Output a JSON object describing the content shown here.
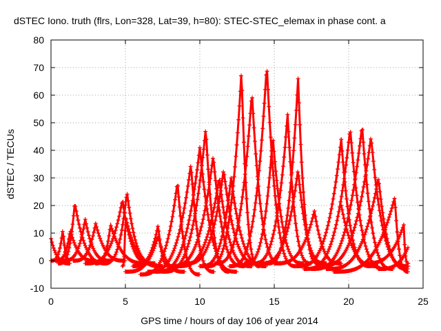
{
  "chart_data": {
    "type": "scatter",
    "title": "dSTEC Iono. truth (flrs, Lon=328, Lat=39, h=80): STEC-STEC_elemax in phase cont. a",
    "xlabel": "GPS time / hours of day 106 of year 2014",
    "ylabel": "dSTEC  / TECUs",
    "xlim": [
      0,
      25
    ],
    "ylim": [
      -10,
      80
    ],
    "xticks": [
      0,
      5,
      10,
      15,
      20,
      25
    ],
    "yticks": [
      -10,
      0,
      10,
      20,
      30,
      40,
      50,
      60,
      70,
      80
    ],
    "grid": true,
    "marker": "+",
    "color": "#ff0000",
    "arcs": [
      {
        "start": 0.0,
        "peak_time": 0.0,
        "peak": 8,
        "end": 1.3,
        "min": -1
      },
      {
        "start": 0.0,
        "peak_time": 0.8,
        "peak": 11.5,
        "end": 1.3,
        "min": 0
      },
      {
        "start": 0.3,
        "peak_time": 1.3,
        "peak": 11,
        "end": 3.0,
        "min": 0
      },
      {
        "start": 0.5,
        "peak_time": 1.6,
        "peak": 21,
        "end": 3.8,
        "min": -1
      },
      {
        "start": 0.8,
        "peak_time": 2.3,
        "peak": 15,
        "end": 4.0,
        "min": 0
      },
      {
        "start": 1.5,
        "peak_time": 3.0,
        "peak": 13.5,
        "end": 5.0,
        "min": 0
      },
      {
        "start": 3.0,
        "peak_time": 4.0,
        "peak": 13,
        "end": 6.5,
        "min": -1
      },
      {
        "start": 2.3,
        "peak_time": 4.8,
        "peak": 22,
        "end": 6.8,
        "min": -1
      },
      {
        "start": 3.5,
        "peak_time": 5.1,
        "peak": 25,
        "end": 7.0,
        "min": -1
      },
      {
        "start": 4.8,
        "peak_time": 5.0,
        "peak": 16,
        "end": 7.5,
        "min": -2
      },
      {
        "start": 5.5,
        "peak_time": 7.2,
        "peak": 13,
        "end": 8.0,
        "min": -2
      },
      {
        "start": 5.0,
        "peak_time": 7.2,
        "peak": 9,
        "end": 9.0,
        "min": -4
      },
      {
        "start": 6.0,
        "peak_time": 8.5,
        "peak": 28.5,
        "end": 10.0,
        "min": -5
      },
      {
        "start": 6.5,
        "peak_time": 9.4,
        "peak": 35,
        "end": 11.0,
        "min": -4
      },
      {
        "start": 7.0,
        "peak_time": 10.0,
        "peak": 41,
        "end": 12.5,
        "min": -4
      },
      {
        "start": 7.5,
        "peak_time": 10.4,
        "peak": 48,
        "end": 12.0,
        "min": -4
      },
      {
        "start": 8.0,
        "peak_time": 10.9,
        "peak": 38,
        "end": 13.0,
        "min": -2
      },
      {
        "start": 8.5,
        "peak_time": 11.3,
        "peak": 30,
        "end": 13.5,
        "min": -2
      },
      {
        "start": 9.0,
        "peak_time": 11.6,
        "peak": 33,
        "end": 14.0,
        "min": -1
      },
      {
        "start": 10.0,
        "peak_time": 12.1,
        "peak": 30,
        "end": 14.5,
        "min": -2
      },
      {
        "start": 10.5,
        "peak_time": 12.8,
        "peak": 69,
        "end": 14.0,
        "min": -2
      },
      {
        "start": 11.0,
        "peak_time": 13.5,
        "peak": 61,
        "end": 15.5,
        "min": -1
      },
      {
        "start": 12.0,
        "peak_time": 14.5,
        "peak": 71,
        "end": 16.5,
        "min": -2
      },
      {
        "start": 13.0,
        "peak_time": 14.9,
        "peak": 45,
        "end": 17.0,
        "min": -1
      },
      {
        "start": 13.5,
        "peak_time": 15.9,
        "peak": 53,
        "end": 17.5,
        "min": -1
      },
      {
        "start": 14.0,
        "peak_time": 16.6,
        "peak": 33,
        "end": 18.5,
        "min": -1
      },
      {
        "start": 14.5,
        "peak_time": 16.6,
        "peak": 66,
        "end": 18.0,
        "min": -1
      },
      {
        "start": 15.0,
        "peak_time": 17.7,
        "peak": 18,
        "end": 19.5,
        "min": -1
      },
      {
        "start": 16.5,
        "peak_time": 19.5,
        "peak": 44,
        "end": 21.5,
        "min": -2
      },
      {
        "start": 17.0,
        "peak_time": 20.1,
        "peak": 48,
        "end": 22.5,
        "min": -3
      },
      {
        "start": 17.5,
        "peak_time": 20.9,
        "peak": 49,
        "end": 23.0,
        "min": -3
      },
      {
        "start": 18.0,
        "peak_time": 21.5,
        "peak": 45,
        "end": 24.0,
        "min": -2
      },
      {
        "start": 18.5,
        "peak_time": 22.0,
        "peak": 30,
        "end": 24.0,
        "min": -3
      },
      {
        "start": 19.0,
        "peak_time": 23.1,
        "peak": 23,
        "end": 24.0,
        "min": -4
      },
      {
        "start": 19.5,
        "peak_time": 19.4,
        "peak": 23,
        "end": 22.0,
        "min": -2
      },
      {
        "start": 21.0,
        "peak_time": 23.7,
        "peak": 13,
        "end": 24.0,
        "min": -1
      },
      {
        "start": 22.0,
        "peak_time": 24.0,
        "peak": 5,
        "end": 24.0,
        "min": -3
      }
    ]
  }
}
